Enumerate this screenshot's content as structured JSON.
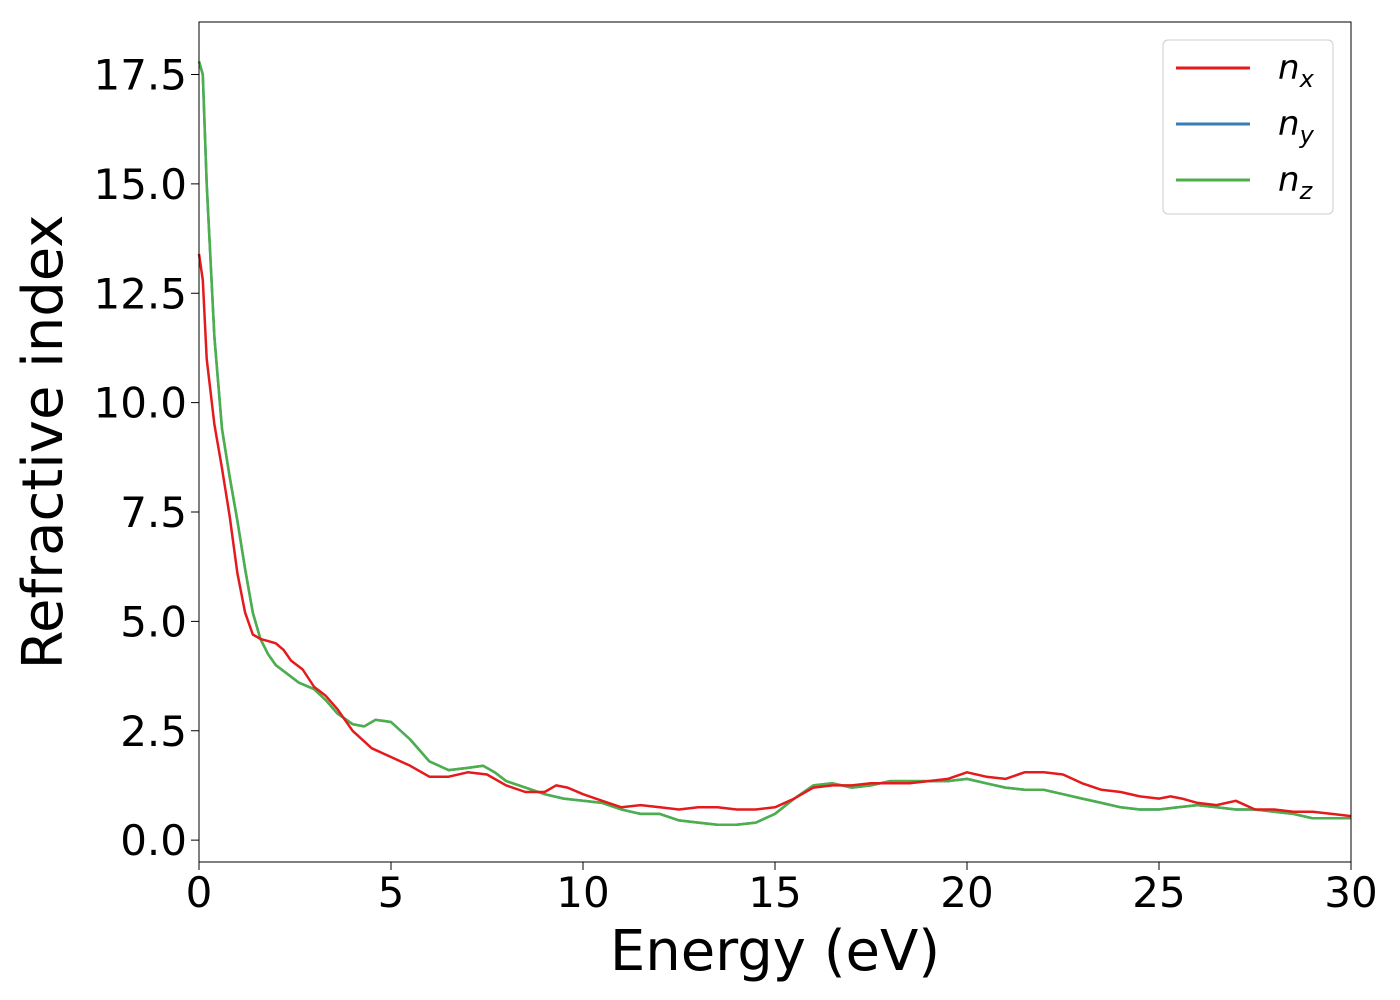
{
  "chart_data": {
    "type": "line",
    "xlabel": "Energy (eV)",
    "ylabel": "Refractive index",
    "xlim": [
      0,
      30
    ],
    "ylim": [
      -0.5,
      18.7
    ],
    "x_ticks": [
      0,
      5,
      10,
      15,
      20,
      25,
      30
    ],
    "x_tick_labels": [
      "0",
      "5",
      "10",
      "15",
      "20",
      "25",
      "30"
    ],
    "y_ticks": [
      0,
      2.5,
      5,
      7.5,
      10,
      12.5,
      15,
      17.5
    ],
    "y_tick_labels": [
      "0.0",
      "2.5",
      "5.0",
      "7.5",
      "10.0",
      "12.5",
      "15.0",
      "17.5"
    ],
    "grid": false,
    "legend_position": "top-right",
    "series": [
      {
        "name": "n_x",
        "legend_base": "n",
        "legend_sub": "x",
        "color": "#e41a1c",
        "x": [
          0,
          0.1,
          0.2,
          0.4,
          0.6,
          0.8,
          1.0,
          1.2,
          1.4,
          1.6,
          1.8,
          2.0,
          2.2,
          2.4,
          2.7,
          3.0,
          3.3,
          3.6,
          4.0,
          4.5,
          5.0,
          5.5,
          6.0,
          6.5,
          7.0,
          7.5,
          8.0,
          8.5,
          9.0,
          9.3,
          9.6,
          10.0,
          10.5,
          11.0,
          11.5,
          12.0,
          12.5,
          13.0,
          13.5,
          14.0,
          14.5,
          15.0,
          15.5,
          16.0,
          16.5,
          17.0,
          17.5,
          18.0,
          18.5,
          19.0,
          19.5,
          20.0,
          20.5,
          21.0,
          21.5,
          22.0,
          22.5,
          23.0,
          23.5,
          24.0,
          24.5,
          25.0,
          25.3,
          25.6,
          26.0,
          26.5,
          27.0,
          27.5,
          28.0,
          28.5,
          29.0,
          29.5,
          30.0
        ],
        "values": [
          13.4,
          12.8,
          11.0,
          9.5,
          8.5,
          7.4,
          6.1,
          5.2,
          4.7,
          4.6,
          4.55,
          4.5,
          4.35,
          4.1,
          3.9,
          3.5,
          3.3,
          3.0,
          2.5,
          2.1,
          1.9,
          1.7,
          1.45,
          1.45,
          1.55,
          1.5,
          1.25,
          1.1,
          1.1,
          1.25,
          1.2,
          1.05,
          0.9,
          0.75,
          0.8,
          0.75,
          0.7,
          0.75,
          0.75,
          0.7,
          0.7,
          0.75,
          0.95,
          1.2,
          1.25,
          1.25,
          1.3,
          1.3,
          1.3,
          1.35,
          1.4,
          1.55,
          1.45,
          1.4,
          1.55,
          1.55,
          1.5,
          1.3,
          1.15,
          1.1,
          1.0,
          0.95,
          1.0,
          0.95,
          0.85,
          0.8,
          0.9,
          0.7,
          0.7,
          0.65,
          0.65,
          0.6,
          0.55
        ]
      },
      {
        "name": "n_y",
        "legend_base": "n",
        "legend_sub": "y",
        "color": "#377eb8",
        "x": [
          0,
          0.1,
          0.2,
          0.4,
          0.6,
          0.8,
          1.0,
          1.2,
          1.4,
          1.6,
          1.8,
          2.0,
          2.3,
          2.6,
          3.0,
          3.3,
          3.6,
          4.0,
          4.3,
          4.6,
          5.0,
          5.5,
          6.0,
          6.5,
          7.0,
          7.4,
          7.7,
          8.0,
          8.5,
          9.0,
          9.5,
          10.0,
          10.5,
          11.0,
          11.5,
          12.0,
          12.5,
          13.0,
          13.5,
          14.0,
          14.5,
          15.0,
          15.5,
          16.0,
          16.5,
          17.0,
          17.5,
          18.0,
          18.5,
          19.0,
          19.5,
          20.0,
          20.5,
          21.0,
          21.5,
          22.0,
          22.5,
          23.0,
          23.5,
          24.0,
          24.5,
          25.0,
          25.5,
          26.0,
          26.5,
          27.0,
          27.5,
          28.0,
          28.5,
          29.0,
          29.5,
          30.0
        ],
        "values": [
          17.8,
          17.5,
          15.0,
          11.5,
          9.4,
          8.3,
          7.3,
          6.2,
          5.2,
          4.6,
          4.25,
          4.0,
          3.8,
          3.6,
          3.45,
          3.2,
          2.9,
          2.65,
          2.6,
          2.75,
          2.7,
          2.3,
          1.8,
          1.6,
          1.65,
          1.7,
          1.55,
          1.35,
          1.2,
          1.05,
          0.95,
          0.9,
          0.85,
          0.7,
          0.6,
          0.6,
          0.45,
          0.4,
          0.35,
          0.35,
          0.4,
          0.6,
          0.95,
          1.25,
          1.3,
          1.2,
          1.25,
          1.35,
          1.35,
          1.35,
          1.35,
          1.4,
          1.3,
          1.2,
          1.15,
          1.15,
          1.05,
          0.95,
          0.85,
          0.75,
          0.7,
          0.7,
          0.75,
          0.8,
          0.75,
          0.7,
          0.7,
          0.65,
          0.6,
          0.5,
          0.5,
          0.5
        ]
      },
      {
        "name": "n_z",
        "legend_base": "n",
        "legend_sub": "z",
        "color": "#4daf4a",
        "x": [
          0,
          0.1,
          0.2,
          0.4,
          0.6,
          0.8,
          1.0,
          1.2,
          1.4,
          1.6,
          1.8,
          2.0,
          2.3,
          2.6,
          3.0,
          3.3,
          3.6,
          4.0,
          4.3,
          4.6,
          5.0,
          5.5,
          6.0,
          6.5,
          7.0,
          7.4,
          7.7,
          8.0,
          8.5,
          9.0,
          9.5,
          10.0,
          10.5,
          11.0,
          11.5,
          12.0,
          12.5,
          13.0,
          13.5,
          14.0,
          14.5,
          15.0,
          15.5,
          16.0,
          16.5,
          17.0,
          17.5,
          18.0,
          18.5,
          19.0,
          19.5,
          20.0,
          20.5,
          21.0,
          21.5,
          22.0,
          22.5,
          23.0,
          23.5,
          24.0,
          24.5,
          25.0,
          25.5,
          26.0,
          26.5,
          27.0,
          27.5,
          28.0,
          28.5,
          29.0,
          29.5,
          30.0
        ],
        "values": [
          17.8,
          17.5,
          15.0,
          11.5,
          9.4,
          8.3,
          7.3,
          6.2,
          5.2,
          4.6,
          4.25,
          4.0,
          3.8,
          3.6,
          3.45,
          3.2,
          2.9,
          2.65,
          2.6,
          2.75,
          2.7,
          2.3,
          1.8,
          1.6,
          1.65,
          1.7,
          1.55,
          1.35,
          1.2,
          1.05,
          0.95,
          0.9,
          0.85,
          0.7,
          0.6,
          0.6,
          0.45,
          0.4,
          0.35,
          0.35,
          0.4,
          0.6,
          0.95,
          1.25,
          1.3,
          1.2,
          1.25,
          1.35,
          1.35,
          1.35,
          1.35,
          1.4,
          1.3,
          1.2,
          1.15,
          1.15,
          1.05,
          0.95,
          0.85,
          0.75,
          0.7,
          0.7,
          0.75,
          0.8,
          0.75,
          0.7,
          0.7,
          0.65,
          0.6,
          0.5,
          0.5,
          0.5
        ]
      }
    ]
  }
}
